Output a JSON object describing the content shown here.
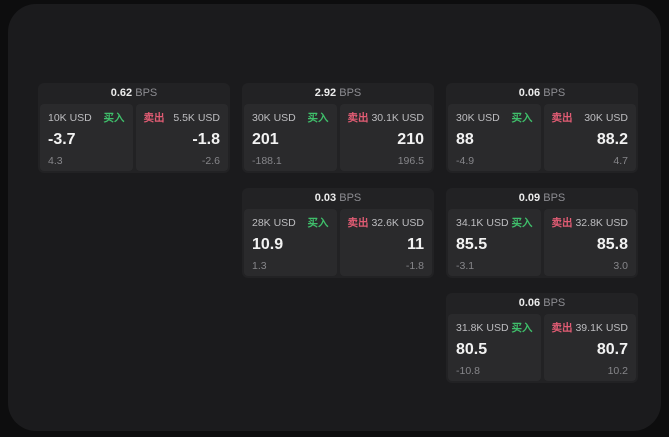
{
  "labels": {
    "bps_unit": "BPS",
    "buy": "买入",
    "sell": "卖出"
  },
  "colors": {
    "buy": "#3fbf6b",
    "sell": "#e25c74",
    "window_bg": "#1b1b1d",
    "card_bg": "#222224",
    "panel_bg": "#2a2a2c"
  },
  "cards": [
    {
      "col": 1,
      "row": 1,
      "bps": "0.62",
      "buy": {
        "usd": "10K USD",
        "main": "-3.7",
        "sub": "4.3"
      },
      "sell": {
        "usd": "5.5K USD",
        "main": "-1.8",
        "sub": "-2.6"
      }
    },
    {
      "col": 2,
      "row": 1,
      "bps": "2.92",
      "buy": {
        "usd": "30K USD",
        "main": "201",
        "sub": "-188.1"
      },
      "sell": {
        "usd": "30.1K USD",
        "main": "210",
        "sub": "196.5"
      }
    },
    {
      "col": 3,
      "row": 1,
      "bps": "0.06",
      "buy": {
        "usd": "30K USD",
        "main": "88",
        "sub": "-4.9"
      },
      "sell": {
        "usd": "30K USD",
        "main": "88.2",
        "sub": "4.7"
      }
    },
    {
      "col": 2,
      "row": 2,
      "bps": "0.03",
      "buy": {
        "usd": "28K USD",
        "main": "10.9",
        "sub": "1.3"
      },
      "sell": {
        "usd": "32.6K USD",
        "main": "11",
        "sub": "-1.8"
      }
    },
    {
      "col": 3,
      "row": 2,
      "bps": "0.09",
      "buy": {
        "usd": "34.1K USD",
        "main": "85.5",
        "sub": "-3.1"
      },
      "sell": {
        "usd": "32.8K USD",
        "main": "85.8",
        "sub": "3.0"
      }
    },
    {
      "col": 3,
      "row": 3,
      "bps": "0.06",
      "buy": {
        "usd": "31.8K USD",
        "main": "80.5",
        "sub": "-10.8"
      },
      "sell": {
        "usd": "39.1K USD",
        "main": "80.7",
        "sub": "10.2"
      }
    }
  ]
}
